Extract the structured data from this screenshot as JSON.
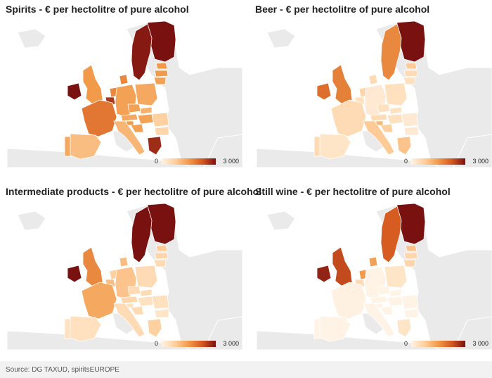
{
  "panels": [
    {
      "title": "Spirits - € per hectolitre of pure alcohol",
      "legend_min": "0",
      "legend_max": "3 000",
      "levels": {
        "fi": 3000,
        "se": 2900,
        "ie": 3000,
        "gr": 2700,
        "be": 2600,
        "fr": 1900,
        "nl": 1700,
        "dk": 1700,
        "de": 1400,
        "pl": 1300,
        "cz": 1400,
        "at": 1300,
        "it": 1100,
        "es": 1000,
        "pt": 1300,
        "uk": 1500,
        "ee": 1500,
        "lv": 1500,
        "lt": 1400,
        "ro": 700,
        "bg": 600,
        "hu": 1400,
        "sk": 1200,
        "si": 1500,
        "hr": 1400
      }
    },
    {
      "title": "Beer - € per hectolitre of pure alcohol",
      "legend_min": "0",
      "legend_max": "3 000",
      "levels": {
        "fi": 3000,
        "se": 1700,
        "ie": 2000,
        "gr": 900,
        "be": 400,
        "fr": 500,
        "nl": 600,
        "dk": 500,
        "de": 200,
        "pl": 400,
        "cz": 400,
        "at": 500,
        "it": 800,
        "es": 300,
        "pt": 500,
        "uk": 1800,
        "ee": 800,
        "lv": 500,
        "lt": 400,
        "ro": 200,
        "bg": 200,
        "hu": 400,
        "sk": 400,
        "si": 1100,
        "hr": 700
      }
    },
    {
      "title": "Intermediate products - € per hectolitre of pure alcohol",
      "legend_min": "0",
      "legend_max": "3 000",
      "levels": {
        "fi": 3000,
        "se": 3000,
        "ie": 3000,
        "gr": 700,
        "be": 1000,
        "fr": 1300,
        "nl": 700,
        "dk": 1000,
        "de": 900,
        "pl": 500,
        "cz": 500,
        "at": 600,
        "it": 500,
        "es": 400,
        "pt": 400,
        "uk": 1700,
        "ee": 800,
        "lv": 600,
        "lt": 500,
        "ro": 400,
        "bg": 300,
        "hu": 400,
        "sk": 500,
        "si": 400,
        "hr": 500
      }
    },
    {
      "title": "Still wine - € per hectolitre of pure alcohol",
      "legend_min": "0",
      "legend_max": "3 000",
      "levels": {
        "fi": 3000,
        "se": 2200,
        "ie": 2800,
        "gr": 300,
        "be": 500,
        "fr": 50,
        "nl": 1500,
        "dk": 1400,
        "de": 0,
        "pl": 300,
        "cz": 0,
        "at": 0,
        "it": 0,
        "es": 0,
        "pt": 0,
        "uk": 2400,
        "ee": 900,
        "lv": 600,
        "lt": 600,
        "ro": 0,
        "bg": 0,
        "hu": 0,
        "sk": 0,
        "si": 0,
        "hr": 0
      }
    }
  ],
  "colors": {
    "scale": [
      "#fff3e6",
      "#ffcf9c",
      "#f19a4a",
      "#d4581f",
      "#7a1111"
    ],
    "non_eu": "#eaeaea",
    "sea": "#ffffff",
    "border": "#ffffff"
  },
  "source": "Source: DG TAXUD, spiritsEUROPE"
}
